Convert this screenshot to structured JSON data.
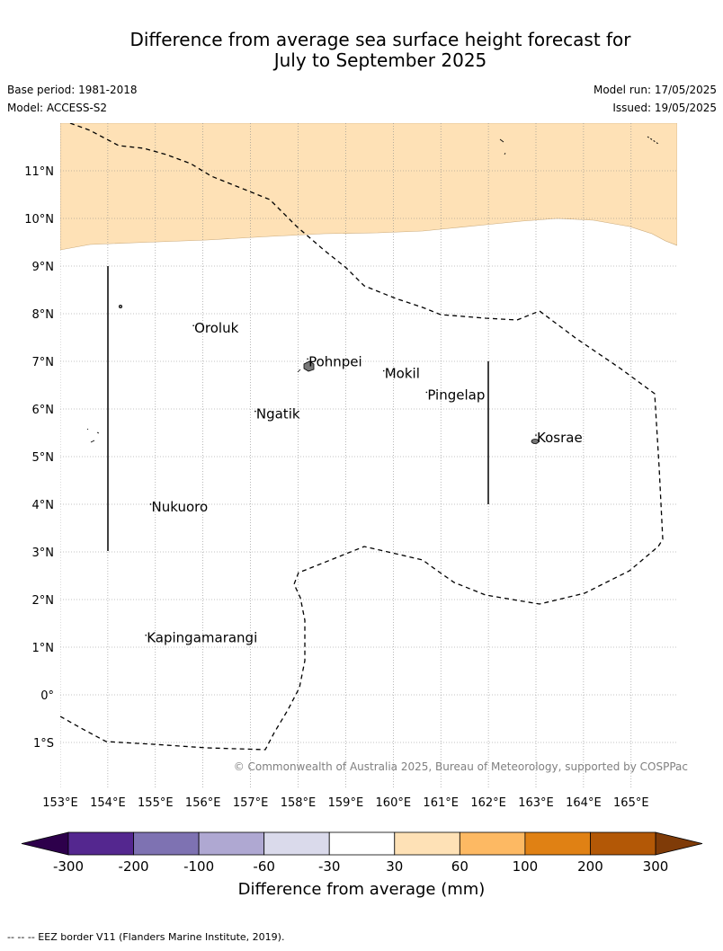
{
  "title_line1": "Difference from average sea surface height forecast for",
  "title_line2": "July to September 2025",
  "base_period": "Base period: 1981-2018",
  "model": "Model: ACCESS-S2",
  "model_run": "Model run: 17/05/2025",
  "issued": "Issued: 19/05/2025",
  "copyright": "© Commonwealth of Australia 2025, Bureau of Meteorology, supported by COSPPac",
  "lat_labels": [
    "11°N",
    "10°N",
    "9°N",
    "8°N",
    "7°N",
    "6°N",
    "5°N",
    "4°N",
    "3°N",
    "2°N",
    "1°N",
    "0°",
    "1°S"
  ],
  "lon_labels": [
    "153°E",
    "154°E",
    "155°E",
    "156°E",
    "157°E",
    "158°E",
    "159°E",
    "160°E",
    "161°E",
    "162°E",
    "163°E",
    "164°E",
    "165°E"
  ],
  "places": [
    {
      "name": "Oroluk",
      "lon": 155.8,
      "lat": 7.6
    },
    {
      "name": "Pohnpei",
      "lon": 158.2,
      "lat": 6.9
    },
    {
      "name": "Mokil",
      "lon": 159.8,
      "lat": 6.65
    },
    {
      "name": "Pingelap",
      "lon": 160.7,
      "lat": 6.2
    },
    {
      "name": "Ngatik",
      "lon": 157.1,
      "lat": 5.8
    },
    {
      "name": "Kosrae",
      "lon": 163.0,
      "lat": 5.3
    },
    {
      "name": "Nukuoro",
      "lon": 154.9,
      "lat": 3.85
    },
    {
      "name": "Kapingamarangi",
      "lon": 154.8,
      "lat": 1.1
    }
  ],
  "colorbar": {
    "ticks": [
      "-300",
      "-200",
      "-100",
      "-60",
      "-30",
      "30",
      "60",
      "100",
      "200",
      "300"
    ],
    "colors": [
      "#54278f",
      "#7e72b2",
      "#afa8d2",
      "#dadaeb",
      "#ffffff",
      "#fee1b6",
      "#fdb963",
      "#e08114",
      "#b35806"
    ],
    "under_color": "#2d004b",
    "over_color": "#7f3b08",
    "label": "Difference from average (mm)"
  },
  "shaded_band_color": "#fee1b6",
  "footnote": "--  --  -- EEZ border V11 (Flanders Marine Institute, 2019)."
}
